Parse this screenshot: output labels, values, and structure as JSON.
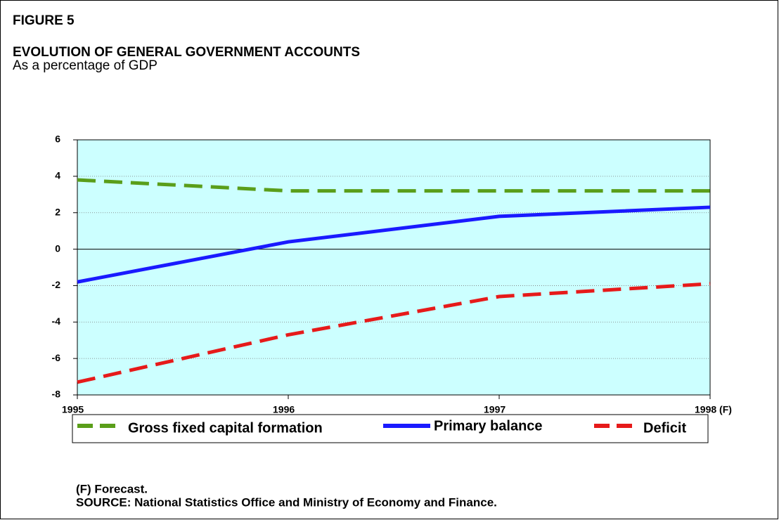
{
  "chart_data": {
    "type": "line",
    "figure_label": "FIGURE 5",
    "title": "EVOLUTION OF GENERAL GOVERNMENT ACCOUNTS",
    "subtitle": "As a percentage of GDP",
    "categories": [
      "1995",
      "1996",
      "1997",
      "1998 (F)"
    ],
    "series": [
      {
        "name": "Gross fixed capital formation",
        "color": "#5a9e1a",
        "style": "dashed",
        "values": [
          3.8,
          3.2,
          3.2,
          3.2
        ]
      },
      {
        "name": "Primary balance",
        "color": "#1a1aff",
        "style": "solid",
        "values": [
          -1.8,
          0.4,
          1.8,
          2.3
        ]
      },
      {
        "name": "Deficit",
        "color": "#e61a1a",
        "style": "dashed",
        "values": [
          -7.3,
          -4.7,
          -2.6,
          -1.9
        ]
      }
    ],
    "ylim": [
      -8,
      6
    ],
    "yticks": [
      -8,
      -6,
      -4,
      -2,
      0,
      2,
      4,
      6
    ],
    "grid": true,
    "plot_background": "#ccffff",
    "notes": [
      "(F) Forecast.",
      "SOURCE: National Statistics Office and Ministry of Economy and Finance."
    ]
  }
}
